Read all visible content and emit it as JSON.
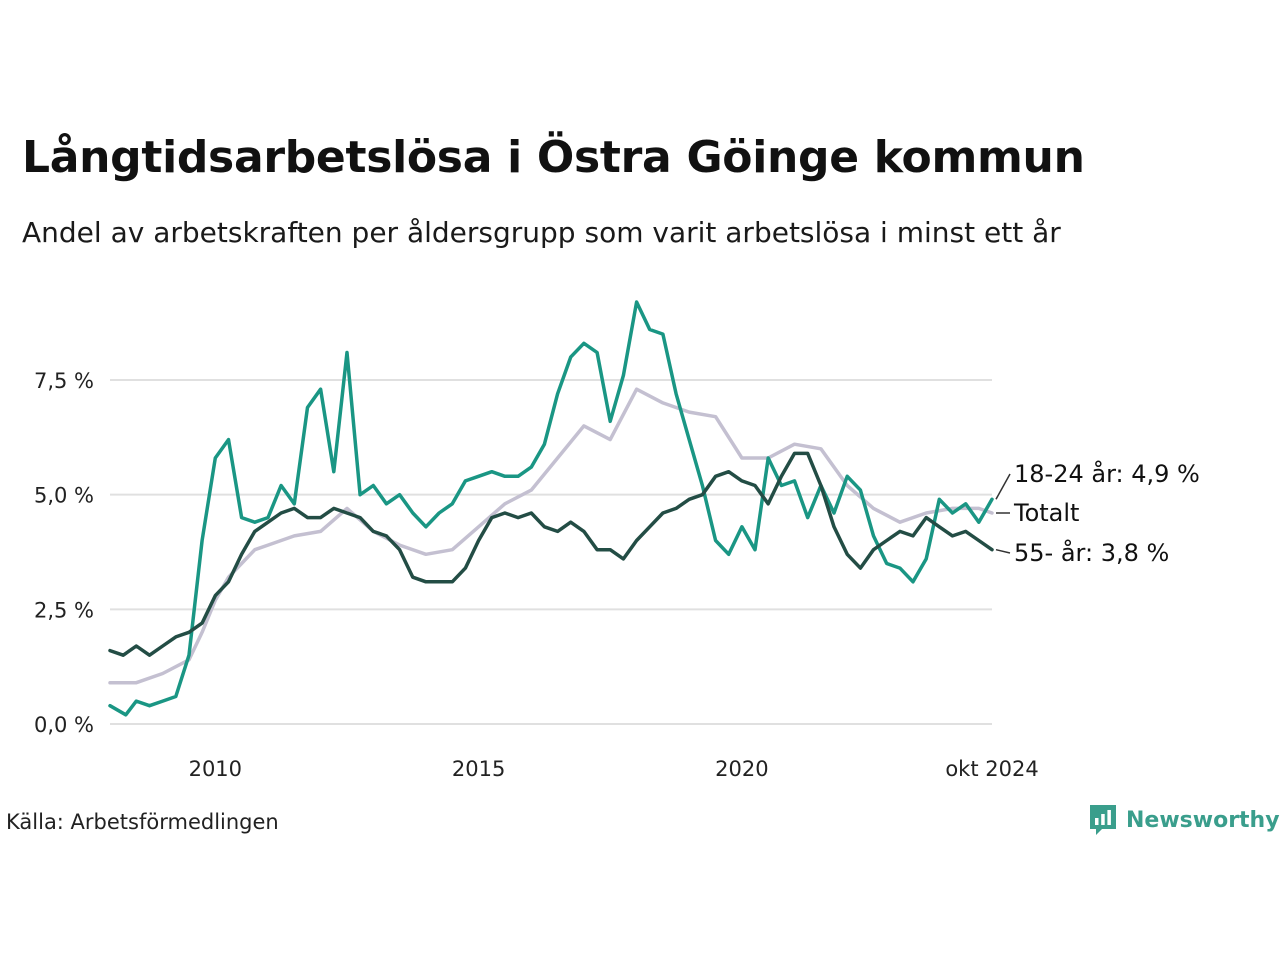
{
  "title": "Långtidsarbetslösa i Östra Göinge kommun",
  "subtitle": "Andel av arbetskraften per åldersgrupp som varit arbetslösa i minst ett år",
  "source": "Källa: Arbetsförmedlingen",
  "brand": {
    "name": "Newsworthy",
    "icon": "bar-chart-logo-icon",
    "color": "#3a9e8c"
  },
  "chart_data": {
    "type": "line",
    "x_unit": "year",
    "xlim": [
      2008.0,
      2024.75
    ],
    "ylim": [
      0,
      9.2
    ],
    "y_ticks": [
      0,
      2.5,
      5,
      7.5
    ],
    "y_tick_labels": [
      "0,0 %",
      "2,5 %",
      "5,0 %",
      "7,5 %"
    ],
    "x_ticks": [
      2010,
      2015,
      2020,
      2024.75
    ],
    "x_tick_labels": [
      "2010",
      "2015",
      "2020",
      "okt 2024"
    ],
    "grid": "horizontal",
    "legend": "direct-labels-right",
    "series": [
      {
        "name": "Totalt",
        "end_label": "Totalt",
        "color": "#c4c0d1",
        "points": [
          [
            2008.0,
            0.9
          ],
          [
            2008.5,
            0.9
          ],
          [
            2009.0,
            1.1
          ],
          [
            2009.5,
            1.4
          ],
          [
            2009.75,
            2.0
          ],
          [
            2010.0,
            2.7
          ],
          [
            2010.25,
            3.2
          ],
          [
            2010.5,
            3.5
          ],
          [
            2010.75,
            3.8
          ],
          [
            2011.0,
            3.9
          ],
          [
            2011.5,
            4.1
          ],
          [
            2012.0,
            4.2
          ],
          [
            2012.5,
            4.7
          ],
          [
            2013.0,
            4.2
          ],
          [
            2013.5,
            3.9
          ],
          [
            2014.0,
            3.7
          ],
          [
            2014.5,
            3.8
          ],
          [
            2015.0,
            4.3
          ],
          [
            2015.5,
            4.8
          ],
          [
            2016.0,
            5.1
          ],
          [
            2016.5,
            5.8
          ],
          [
            2017.0,
            6.5
          ],
          [
            2017.5,
            6.2
          ],
          [
            2018.0,
            7.3
          ],
          [
            2018.5,
            7.0
          ],
          [
            2019.0,
            6.8
          ],
          [
            2019.5,
            6.7
          ],
          [
            2020.0,
            5.8
          ],
          [
            2020.5,
            5.8
          ],
          [
            2021.0,
            6.1
          ],
          [
            2021.5,
            6.0
          ],
          [
            2022.0,
            5.2
          ],
          [
            2022.5,
            4.7
          ],
          [
            2023.0,
            4.4
          ],
          [
            2023.5,
            4.6
          ],
          [
            2024.0,
            4.7
          ],
          [
            2024.5,
            4.7
          ],
          [
            2024.75,
            4.6
          ]
        ]
      },
      {
        "name": "18-24 år",
        "end_label": "18-24 år: 4,9 %",
        "color": "#1a9684",
        "points": [
          [
            2008.0,
            0.4
          ],
          [
            2008.3,
            0.2
          ],
          [
            2008.5,
            0.5
          ],
          [
            2008.75,
            0.4
          ],
          [
            2009.0,
            0.5
          ],
          [
            2009.25,
            0.6
          ],
          [
            2009.5,
            1.5
          ],
          [
            2009.75,
            4.0
          ],
          [
            2010.0,
            5.8
          ],
          [
            2010.25,
            6.2
          ],
          [
            2010.5,
            4.5
          ],
          [
            2010.75,
            4.4
          ],
          [
            2011.0,
            4.5
          ],
          [
            2011.25,
            5.2
          ],
          [
            2011.5,
            4.8
          ],
          [
            2011.75,
            6.9
          ],
          [
            2012.0,
            7.3
          ],
          [
            2012.25,
            5.5
          ],
          [
            2012.5,
            8.1
          ],
          [
            2012.75,
            5.0
          ],
          [
            2013.0,
            5.2
          ],
          [
            2013.25,
            4.8
          ],
          [
            2013.5,
            5.0
          ],
          [
            2013.75,
            4.6
          ],
          [
            2014.0,
            4.3
          ],
          [
            2014.25,
            4.6
          ],
          [
            2014.5,
            4.8
          ],
          [
            2014.75,
            5.3
          ],
          [
            2015.0,
            5.4
          ],
          [
            2015.25,
            5.5
          ],
          [
            2015.5,
            5.4
          ],
          [
            2015.75,
            5.4
          ],
          [
            2016.0,
            5.6
          ],
          [
            2016.25,
            6.1
          ],
          [
            2016.5,
            7.2
          ],
          [
            2016.75,
            8.0
          ],
          [
            2017.0,
            8.3
          ],
          [
            2017.25,
            8.1
          ],
          [
            2017.5,
            6.6
          ],
          [
            2017.75,
            7.6
          ],
          [
            2018.0,
            9.2
          ],
          [
            2018.25,
            8.6
          ],
          [
            2018.5,
            8.5
          ],
          [
            2018.75,
            7.2
          ],
          [
            2019.0,
            6.2
          ],
          [
            2019.25,
            5.2
          ],
          [
            2019.5,
            4.0
          ],
          [
            2019.75,
            3.7
          ],
          [
            2020.0,
            4.3
          ],
          [
            2020.25,
            3.8
          ],
          [
            2020.5,
            5.8
          ],
          [
            2020.75,
            5.2
          ],
          [
            2021.0,
            5.3
          ],
          [
            2021.25,
            4.5
          ],
          [
            2021.5,
            5.2
          ],
          [
            2021.75,
            4.6
          ],
          [
            2022.0,
            5.4
          ],
          [
            2022.25,
            5.1
          ],
          [
            2022.5,
            4.1
          ],
          [
            2022.75,
            3.5
          ],
          [
            2023.0,
            3.4
          ],
          [
            2023.25,
            3.1
          ],
          [
            2023.5,
            3.6
          ],
          [
            2023.75,
            4.9
          ],
          [
            2024.0,
            4.6
          ],
          [
            2024.25,
            4.8
          ],
          [
            2024.5,
            4.4
          ],
          [
            2024.75,
            4.9
          ]
        ]
      },
      {
        "name": "55- år",
        "end_label": "55- år: 3,8 %",
        "color": "#234d45",
        "points": [
          [
            2008.0,
            1.6
          ],
          [
            2008.25,
            1.5
          ],
          [
            2008.5,
            1.7
          ],
          [
            2008.75,
            1.5
          ],
          [
            2009.0,
            1.7
          ],
          [
            2009.25,
            1.9
          ],
          [
            2009.5,
            2.0
          ],
          [
            2009.75,
            2.2
          ],
          [
            2010.0,
            2.8
          ],
          [
            2010.25,
            3.1
          ],
          [
            2010.5,
            3.7
          ],
          [
            2010.75,
            4.2
          ],
          [
            2011.0,
            4.4
          ],
          [
            2011.25,
            4.6
          ],
          [
            2011.5,
            4.7
          ],
          [
            2011.75,
            4.5
          ],
          [
            2012.0,
            4.5
          ],
          [
            2012.25,
            4.7
          ],
          [
            2012.5,
            4.6
          ],
          [
            2012.75,
            4.5
          ],
          [
            2013.0,
            4.2
          ],
          [
            2013.25,
            4.1
          ],
          [
            2013.5,
            3.8
          ],
          [
            2013.75,
            3.2
          ],
          [
            2014.0,
            3.1
          ],
          [
            2014.25,
            3.1
          ],
          [
            2014.5,
            3.1
          ],
          [
            2014.75,
            3.4
          ],
          [
            2015.0,
            4.0
          ],
          [
            2015.25,
            4.5
          ],
          [
            2015.5,
            4.6
          ],
          [
            2015.75,
            4.5
          ],
          [
            2016.0,
            4.6
          ],
          [
            2016.25,
            4.3
          ],
          [
            2016.5,
            4.2
          ],
          [
            2016.75,
            4.4
          ],
          [
            2017.0,
            4.2
          ],
          [
            2017.25,
            3.8
          ],
          [
            2017.5,
            3.8
          ],
          [
            2017.75,
            3.6
          ],
          [
            2018.0,
            4.0
          ],
          [
            2018.25,
            4.3
          ],
          [
            2018.5,
            4.6
          ],
          [
            2018.75,
            4.7
          ],
          [
            2019.0,
            4.9
          ],
          [
            2019.25,
            5.0
          ],
          [
            2019.5,
            5.4
          ],
          [
            2019.75,
            5.5
          ],
          [
            2020.0,
            5.3
          ],
          [
            2020.25,
            5.2
          ],
          [
            2020.5,
            4.8
          ],
          [
            2020.75,
            5.4
          ],
          [
            2021.0,
            5.9
          ],
          [
            2021.25,
            5.9
          ],
          [
            2021.5,
            5.2
          ],
          [
            2021.75,
            4.3
          ],
          [
            2022.0,
            3.7
          ],
          [
            2022.25,
            3.4
          ],
          [
            2022.5,
            3.8
          ],
          [
            2022.75,
            4.0
          ],
          [
            2023.0,
            4.2
          ],
          [
            2023.25,
            4.1
          ],
          [
            2023.5,
            4.5
          ],
          [
            2023.75,
            4.3
          ],
          [
            2024.0,
            4.1
          ],
          [
            2024.25,
            4.2
          ],
          [
            2024.5,
            4.0
          ],
          [
            2024.75,
            3.8
          ]
        ]
      }
    ]
  }
}
